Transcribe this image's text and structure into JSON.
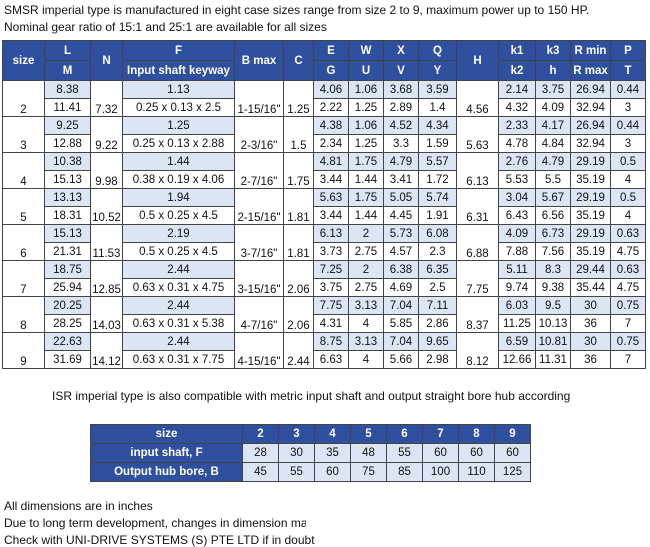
{
  "intro": [
    "SMSR imperial type is manufactured in eight case sizes range from size 2 to 9, maximum power up to 150 HP.",
    "Nominal gear ratio of 15:1 and 25:1 are available for all sizes"
  ],
  "main_table": {
    "header": [
      [
        "size",
        "L",
        "N",
        "F",
        "B max",
        "C",
        "E",
        "W",
        "X",
        "Q",
        "H",
        "k1",
        "k3",
        "R min",
        "P"
      ],
      [
        "M",
        "Input shaft keyway",
        "G",
        "U",
        "V",
        "Y",
        "k2",
        "h",
        "R max",
        "T"
      ]
    ],
    "rows": [
      {
        "size": 2,
        "N": 7.32,
        "B_max": "1-15/16\"",
        "C": 1.25,
        "H": 4.56,
        "upper": [
          8.38,
          1.13,
          4.06,
          1.06,
          3.68,
          3.59,
          2.14,
          3.75,
          26.94,
          0.44
        ],
        "lower": [
          11.41,
          "0.25 x 0.13 x 2.5",
          2.22,
          1.25,
          2.89,
          1.4,
          4.32,
          4.09,
          32.94,
          3
        ]
      },
      {
        "size": 3,
        "N": 9.22,
        "B_max": "2-3/16\"",
        "C": 1.5,
        "H": 5.63,
        "upper": [
          9.25,
          1.25,
          4.38,
          1.06,
          4.52,
          4.34,
          2.33,
          4.17,
          26.94,
          0.44
        ],
        "lower": [
          12.88,
          "0.25 x 0.13 x 2.88",
          2.34,
          1.25,
          3.3,
          1.59,
          4.78,
          4.84,
          32.94,
          3
        ]
      },
      {
        "size": 4,
        "N": 9.98,
        "B_max": "2-7/16\"",
        "C": 1.75,
        "H": 6.13,
        "upper": [
          10.38,
          1.44,
          4.81,
          1.75,
          4.79,
          5.57,
          2.76,
          4.79,
          29.19,
          0.5
        ],
        "lower": [
          15.13,
          "0.38 x 0.19 x 4.06",
          3.44,
          1.44,
          3.41,
          1.72,
          5.53,
          5.5,
          35.19,
          4
        ]
      },
      {
        "size": 5,
        "N": 10.52,
        "B_max": "2-15/16\"",
        "C": 1.81,
        "H": 6.31,
        "upper": [
          13.13,
          1.94,
          5.63,
          1.75,
          5.05,
          5.74,
          3.04,
          5.67,
          29.19,
          0.5
        ],
        "lower": [
          18.31,
          "0.5 x 0.25 x 4.5",
          3.44,
          1.44,
          4.45,
          1.91,
          6.43,
          6.56,
          35.19,
          4
        ]
      },
      {
        "size": 6,
        "N": 11.53,
        "B_max": "3-7/16\"",
        "C": 1.81,
        "H": 6.88,
        "upper": [
          15.13,
          2.19,
          6.13,
          2,
          5.73,
          6.08,
          4.09,
          6.73,
          29.19,
          0.63
        ],
        "lower": [
          21.31,
          "0.5 x 0.25 x 4.5",
          3.73,
          2.75,
          4.57,
          2.3,
          7.88,
          7.56,
          35.19,
          4.75
        ]
      },
      {
        "size": 7,
        "N": 12.85,
        "B_max": "3-15/16\"",
        "C": 2.06,
        "H": 7.75,
        "upper": [
          18.75,
          2.44,
          7.25,
          2,
          6.38,
          6.35,
          5.11,
          8.3,
          29.44,
          0.63
        ],
        "lower": [
          25.94,
          "0.63 x 0.31 x 4.75",
          3.75,
          2.75,
          4.69,
          2.5,
          9.74,
          9.38,
          35.44,
          4.75
        ]
      },
      {
        "size": 8,
        "N": 14.03,
        "B_max": "4-7/16\"",
        "C": 2.06,
        "H": 8.37,
        "upper": [
          20.25,
          2.44,
          7.75,
          3.13,
          7.04,
          7.11,
          6.03,
          9.5,
          30,
          0.75
        ],
        "lower": [
          28.25,
          "0.63 x 0.31 x 5.38",
          4.31,
          4,
          5.85,
          2.86,
          11.25,
          10.13,
          36,
          7
        ]
      },
      {
        "size": 9,
        "N": 14.12,
        "B_max": "4-15/16\"",
        "C": 2.44,
        "H": 8.12,
        "upper": [
          22.63,
          2.44,
          8.75,
          3.13,
          7.04,
          9.65,
          6.59,
          10.81,
          30,
          0.75
        ],
        "lower": [
          31.69,
          "0.63 x 0.31 x 7.75",
          6.63,
          4,
          5.66,
          2.98,
          12.66,
          11.31,
          36,
          7
        ]
      }
    ]
  },
  "iso_note": "ISR imperial type is also compatible with metric input shaft and output straight bore hub according to ISO stand",
  "iso_table": {
    "header": [
      "size",
      2,
      3,
      4,
      5,
      6,
      7,
      8,
      9
    ],
    "rows": [
      [
        "input shaft, F",
        28,
        30,
        35,
        48,
        55,
        60,
        60,
        60
      ],
      [
        "Output hub bore, B",
        45,
        55,
        60,
        75,
        85,
        100,
        110,
        125
      ]
    ]
  },
  "footer": [
    "All dimensions are in inches",
    "Due to long term development, changes in dimension may occu",
    "Check with UNI-DRIVE SYSTEMS (S) PTE LTD if in doubt"
  ]
}
